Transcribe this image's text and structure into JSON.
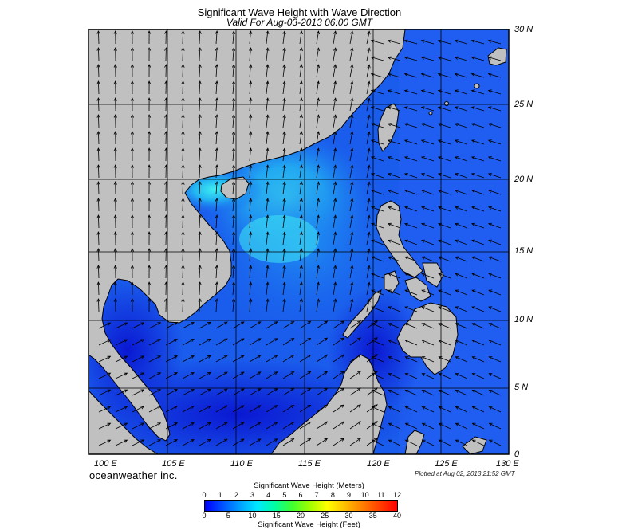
{
  "header": {
    "title": "Significant Wave Height with Wave Direction",
    "subtitle": "Valid For Aug-03-2013 06:00 GMT"
  },
  "map": {
    "lon_labels": [
      "100 E",
      "105 E",
      "110 E",
      "115 E",
      "120 E",
      "125 E",
      "130 E"
    ],
    "lat_labels": [
      "30 N",
      "25 N",
      "20 N",
      "15 N",
      "10 N",
      "5 N",
      "0"
    ],
    "land_color": "#c0c0c0",
    "ocean_colors": {
      "low": "#0a1ad8",
      "mid": "#1f6cf0",
      "high": "#3de0f5"
    }
  },
  "footer": {
    "brand": "oceanweather inc.",
    "plotted": "Plotted at Aug 02, 2013 21:52 GMT"
  },
  "colorbar": {
    "title_meters": "Significant Wave Height (Meters)",
    "title_feet": "Significant Wave Height (Feet)",
    "meter_ticks": [
      "0",
      "1",
      "2",
      "3",
      "4",
      "5",
      "6",
      "7",
      "8",
      "9",
      "10",
      "11",
      "12"
    ],
    "feet_ticks": [
      "0",
      "5",
      "10",
      "15",
      "20",
      "25",
      "30",
      "35",
      "40"
    ],
    "gradient": [
      "#0000ff",
      "#0050ff",
      "#00a0ff",
      "#00e8ff",
      "#00ffa0",
      "#40ff30",
      "#a0ff00",
      "#ffff00",
      "#ffc000",
      "#ff8000",
      "#ff4000",
      "#ff0000"
    ]
  }
}
